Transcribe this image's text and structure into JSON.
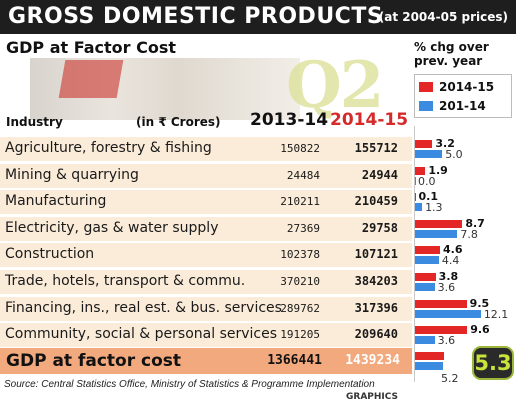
{
  "header": {
    "title": "GROSS DOMESTIC PRODUCTS",
    "subtitle": "(at 2004-05 prices)"
  },
  "section_title": "GDP at Factor Cost",
  "watermark": "Q2",
  "legend": {
    "heading_line1": "% chg over",
    "heading_line2": "prev. year",
    "items": [
      {
        "label": "2014-15",
        "color": "#e32626"
      },
      {
        "label": "201-14",
        "color": "#3b8be0"
      }
    ]
  },
  "table": {
    "col_industry": "Industry",
    "col_unit": "(in ₹ Crores)",
    "col_year1": "2013-14",
    "col_year2": "2014-15"
  },
  "total": {
    "label": "GDP at factor cost",
    "v2013": "1366441",
    "v2014": "1439234",
    "chg2015": "5.3",
    "chg2014": "5.2"
  },
  "source": "Source: Central Statistics Office, Ministry of Statistics & Programme Implementation",
  "credit": "GRAPHICS",
  "colors": {
    "current": "#e32626",
    "previous": "#3b8be0",
    "row_bg": "#fbecd9",
    "total_bg": "#f2a97e",
    "badge_text": "#c8e33a"
  },
  "chart_data": {
    "type": "bar",
    "title": "GROSS DOMESTIC PRODUCTS",
    "categories": [
      "Agriculture, forestry & fishing",
      "Mining & quarrying",
      "Manufacturing",
      "Electricity, gas & water supply",
      "Construction",
      "Trade, hotels, transport & commu.",
      "Financing, ins., real est. & bus. services",
      "Community, social & personal services"
    ],
    "gdp_2013_14": [
      "150822",
      "24484",
      "210211",
      "27369",
      "102378",
      "370210",
      "289762",
      "191205"
    ],
    "gdp_2014_15": [
      "155712",
      "24944",
      "210459",
      "29758",
      "107121",
      "384203",
      "317396",
      "209640"
    ],
    "series": [
      {
        "name": "2014-15",
        "values": [
          3.2,
          1.9,
          0.1,
          8.7,
          4.6,
          3.8,
          9.5,
          9.6
        ]
      },
      {
        "name": "201-14",
        "values": [
          5.0,
          0.0,
          1.3,
          7.8,
          4.4,
          3.6,
          12.1,
          3.6
        ]
      }
    ],
    "value_labels": {
      "2014-15": [
        "3.2",
        "1.9",
        "0.1",
        "8.7",
        "4.6",
        "3.8",
        "9.5",
        "9.6"
      ],
      "201-14": [
        "5.0",
        "0.0",
        "1.3",
        "7.8",
        "4.4",
        "3.6",
        "12.1",
        "3.6"
      ]
    },
    "xlim": [
      0,
      12.5
    ]
  }
}
